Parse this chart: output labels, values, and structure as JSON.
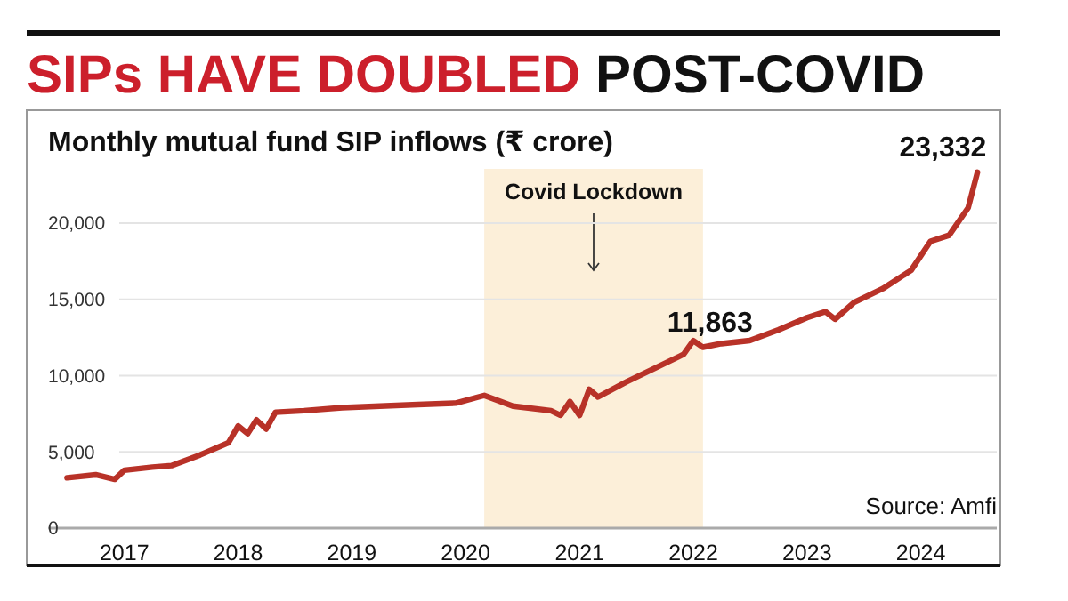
{
  "chart_data": {
    "type": "line",
    "title": "SIPs HAVE DOUBLED POST-COVID",
    "subtitle": "Monthly mutual fund SIP inflows (₹ crore)",
    "x": [
      "2016-07",
      "2016-10",
      "2016-12",
      "2017-01",
      "2017-04",
      "2017-06",
      "2017-09",
      "2017-12",
      "2018-01",
      "2018-02",
      "2018-03",
      "2018-04",
      "2018-05",
      "2018-08",
      "2018-12",
      "2019-04",
      "2019-08",
      "2019-12",
      "2020-03",
      "2020-06",
      "2020-10",
      "2020-11",
      "2020-12",
      "2021-01",
      "2021-02",
      "2021-03",
      "2021-06",
      "2021-09",
      "2021-12",
      "2022-01",
      "2022-02",
      "2022-04",
      "2022-07",
      "2022-10",
      "2023-01",
      "2023-03",
      "2023-04",
      "2023-06",
      "2023-09",
      "2023-12",
      "2024-02",
      "2024-04",
      "2024-06",
      "2024-07"
    ],
    "series": [
      {
        "color": "#b83228",
        "values": [
          3300,
          3500,
          3200,
          3800,
          4000,
          4100,
          4800,
          5600,
          6700,
          6200,
          7100,
          6500,
          7600,
          7700,
          7900,
          8000,
          8100,
          8200,
          8700,
          8000,
          7700,
          7400,
          8300,
          7400,
          9100,
          8600,
          9600,
          10500,
          11400,
          12300,
          11863,
          12100,
          12300,
          13000,
          13800,
          14200,
          13700,
          14800,
          15700,
          16900,
          18800,
          19200,
          21000,
          23332
        ]
      }
    ],
    "xlim": [
      "2016-05",
      "2024-09"
    ],
    "ylim": [
      0,
      27400
    ],
    "xticks": [
      {
        "value": "2017-01",
        "label": "2017"
      },
      {
        "value": "2018-01",
        "label": "2018"
      },
      {
        "value": "2019-01",
        "label": "2019"
      },
      {
        "value": "2020-01",
        "label": "2020"
      },
      {
        "value": "2021-01",
        "label": "2021"
      },
      {
        "value": "2022-01",
        "label": "2022"
      },
      {
        "value": "2023-01",
        "label": "2023"
      },
      {
        "value": "2024-01",
        "label": "2024"
      }
    ],
    "yticks": [
      {
        "value": 0,
        "label": "0"
      },
      {
        "value": 5000,
        "label": "5,000"
      },
      {
        "value": 10000,
        "label": "10,000"
      },
      {
        "value": 15000,
        "label": "15,000"
      },
      {
        "value": 20000,
        "label": "20,000"
      }
    ],
    "grid": "y",
    "bands": [
      {
        "axis": "x",
        "from": "2020-03",
        "to": "2022-02",
        "label": "Covid Lockdown",
        "color": "#fcefd9"
      }
    ],
    "annotations": [
      {
        "text": "11,863",
        "x": "2022-02",
        "y": 11863
      },
      {
        "text": "23,332",
        "x": "2024-07",
        "y": 23332
      },
      "Source: Amfi"
    ]
  }
}
